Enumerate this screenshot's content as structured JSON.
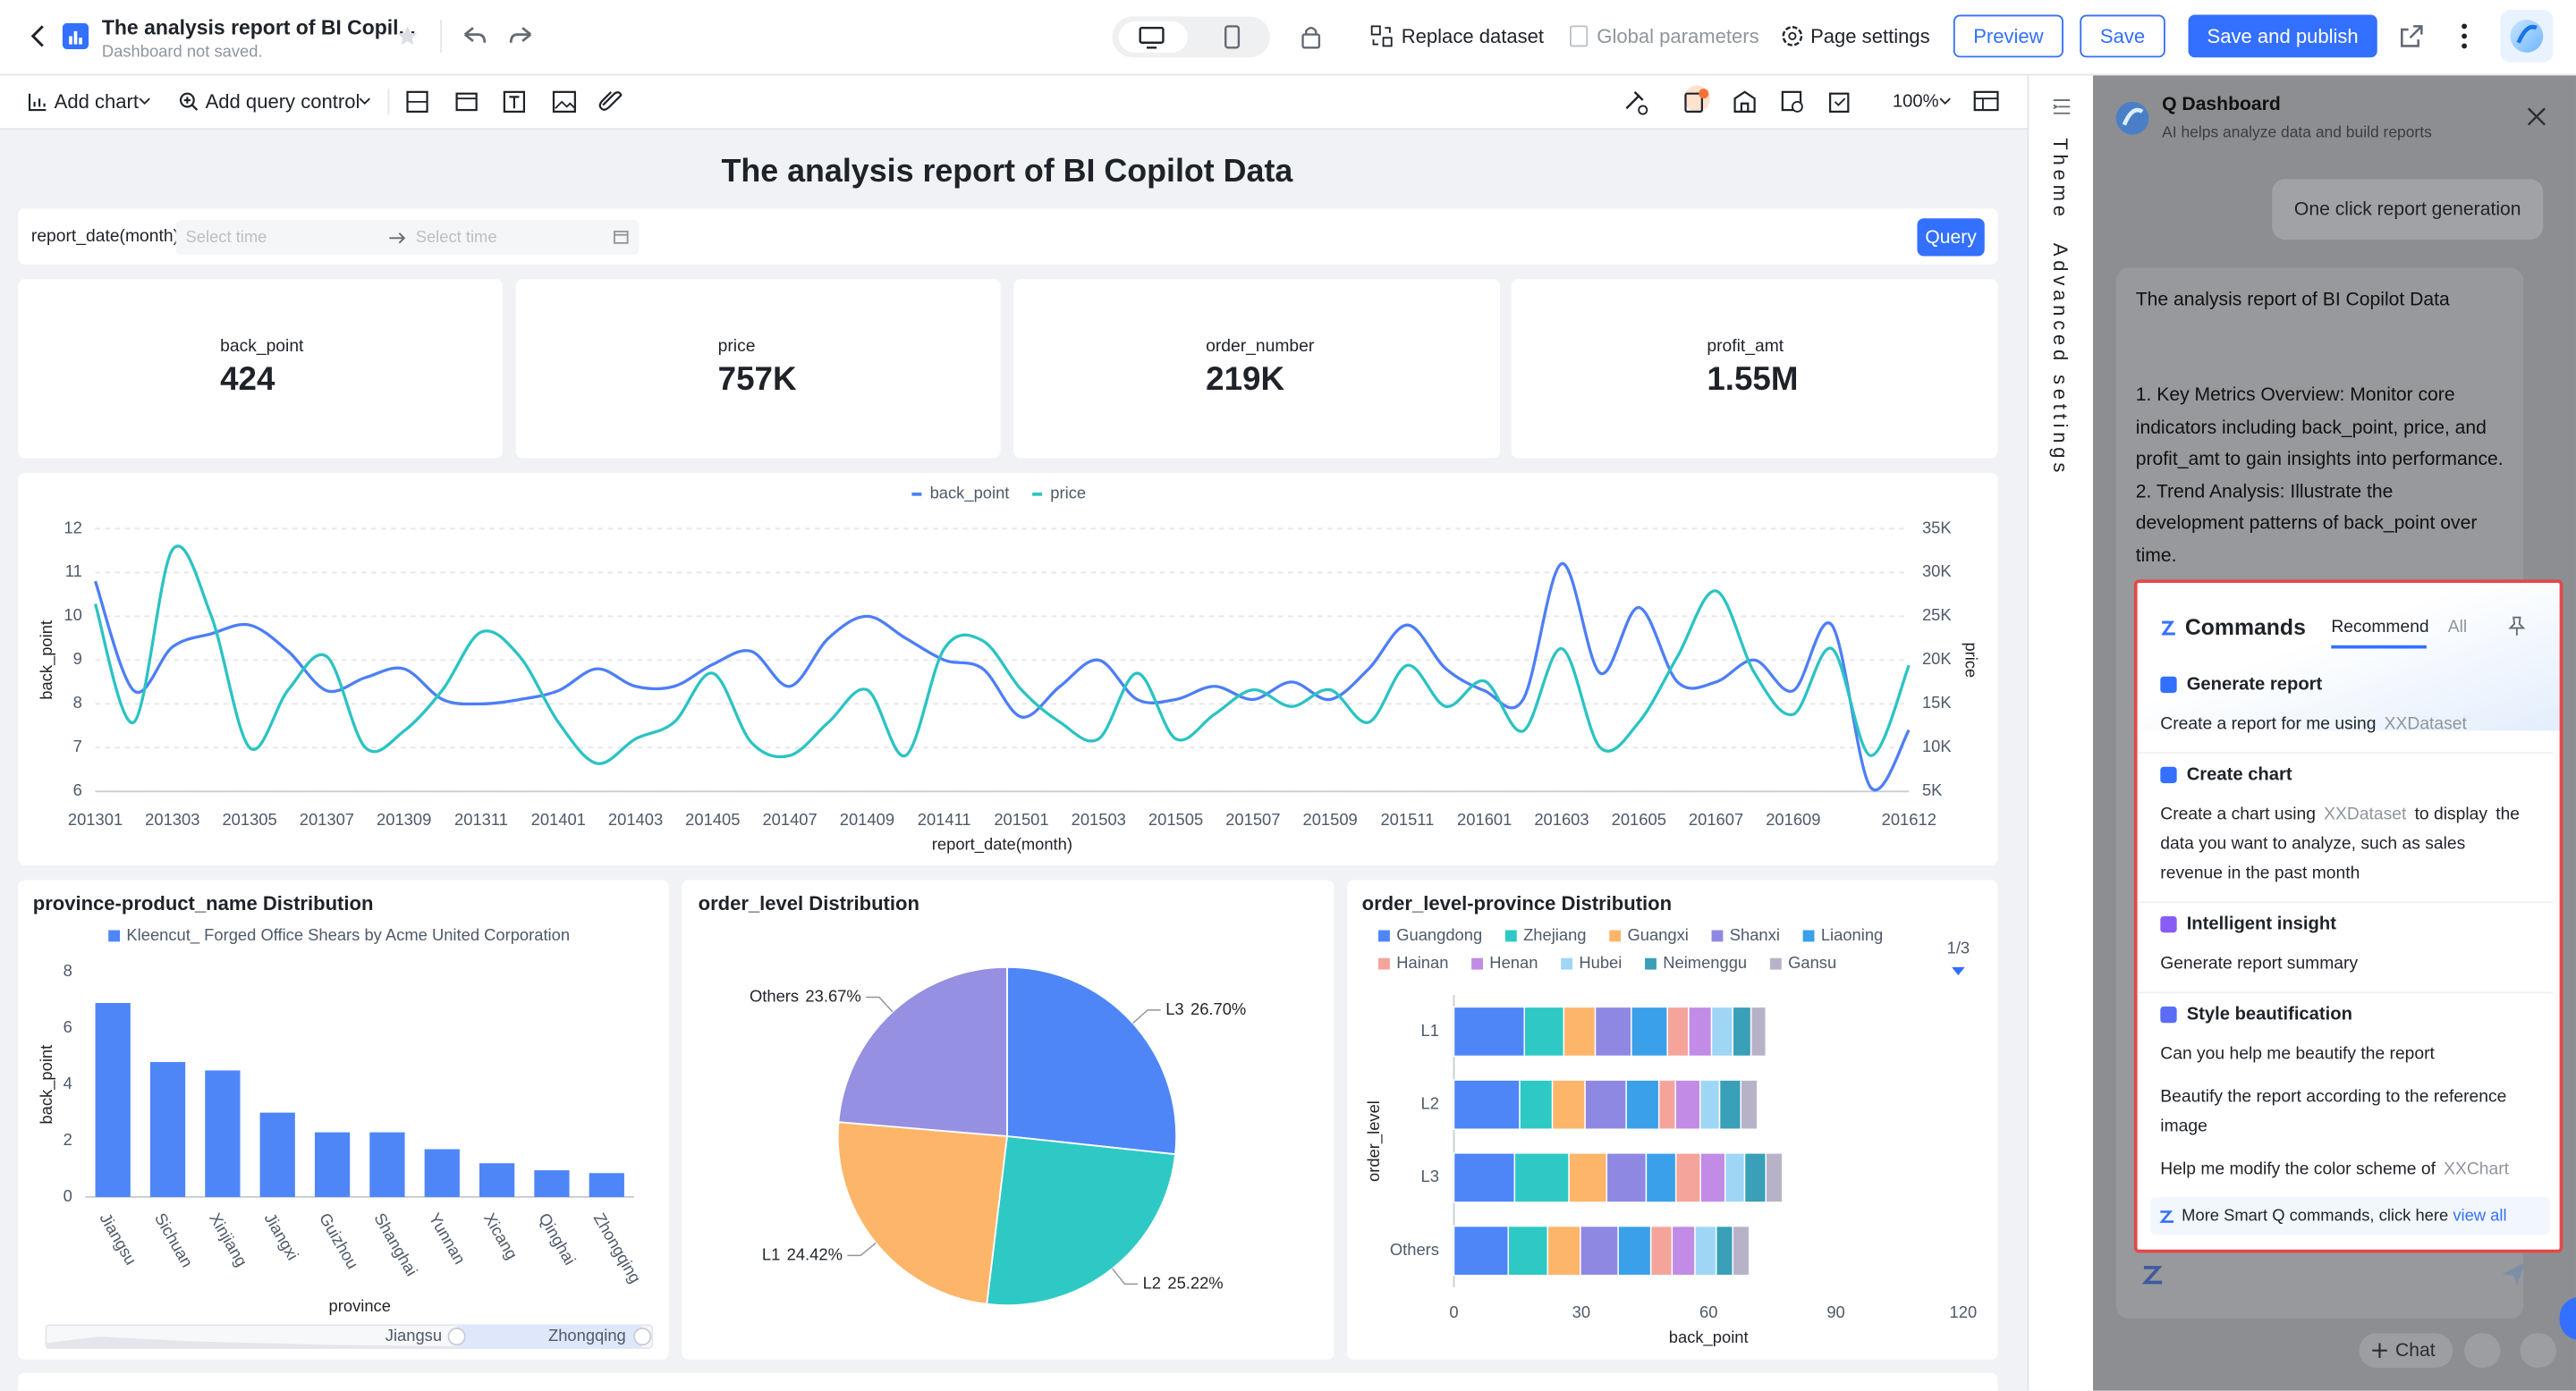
{
  "header": {
    "title": "The analysis report of BI Copil...",
    "status": "Dashboard not saved.",
    "replace_dataset": "Replace dataset",
    "global_parameters": "Global parameters",
    "page_settings": "Page settings",
    "preview": "Preview",
    "save": "Save",
    "publish": "Save and publish"
  },
  "toolbar": {
    "add_chart": "Add chart",
    "add_query_control": "Add query control",
    "zoom": "100%"
  },
  "side_tabs": [
    "Theme",
    "Advanced settings"
  ],
  "dashboard": {
    "title": "The analysis report of BI Copilot Data",
    "filter": {
      "label": "report_date(month)",
      "start": "Select time",
      "end": "Select time",
      "button": "Query"
    },
    "kpis": [
      {
        "label": "back_point",
        "value": "424"
      },
      {
        "label": "price",
        "value": "757K"
      },
      {
        "label": "order_number",
        "value": "219K"
      },
      {
        "label": "profit_amt",
        "value": "1.55M"
      }
    ]
  },
  "chart_data": [
    {
      "type": "line",
      "xlabel": "report_date(month)",
      "ylabel": "back_point",
      "y2label": "price",
      "categories": [
        "201301",
        null,
        "201303",
        null,
        "201305",
        null,
        "201307",
        null,
        "201309",
        null,
        "201311",
        null,
        "201401",
        null,
        "201403",
        null,
        "201405",
        null,
        "201407",
        null,
        "201409",
        null,
        "201411",
        null,
        "201501",
        null,
        "201503",
        null,
        "201505",
        null,
        "201507",
        null,
        "201509",
        null,
        "201511",
        null,
        "201601",
        null,
        "201603",
        null,
        "201605",
        null,
        "201607",
        null,
        "201609",
        null,
        null,
        "201612"
      ],
      "ylim": [
        6,
        12
      ],
      "yticks": [
        6,
        7,
        8,
        9,
        10,
        11,
        12
      ],
      "y2lim": [
        5000,
        35000
      ],
      "y2ticks": [
        {
          "value": 5000,
          "label": "5K"
        },
        {
          "value": 10000,
          "label": "10K"
        },
        {
          "value": 15000,
          "label": "15K"
        },
        {
          "value": 20000,
          "label": "20K"
        },
        {
          "value": 25000,
          "label": "25K"
        },
        {
          "value": 30000,
          "label": "30K"
        },
        {
          "value": 35000,
          "label": "35K"
        }
      ],
      "grid": true,
      "series": [
        {
          "name": "back_point",
          "color": "#4d7ef7",
          "values": [
            10.8,
            8.3,
            9.3,
            9.6,
            9.8,
            9.2,
            8.3,
            8.6,
            8.8,
            8.1,
            8.0,
            8.1,
            8.3,
            8.8,
            8.4,
            8.4,
            8.9,
            9.2,
            8.4,
            9.5,
            10.0,
            9.5,
            9.0,
            8.8,
            7.7,
            8.4,
            9.0,
            8.1,
            8.1,
            8.4,
            8.1,
            8.5,
            8.1,
            8.8,
            9.8,
            8.8,
            8.3,
            8.1,
            11.2,
            8.7,
            10.2,
            8.5,
            8.5,
            9.0,
            8.3,
            9.8,
            6.1,
            7.4
          ]
        },
        {
          "name": "price",
          "color": "#2bc3c3",
          "axis": "y2",
          "values": [
            26400,
            12900,
            32600,
            25100,
            10000,
            16600,
            20400,
            10000,
            11900,
            16600,
            23200,
            20400,
            12900,
            8200,
            11000,
            12900,
            18500,
            10600,
            9100,
            12900,
            16600,
            9100,
            21300,
            22200,
            16600,
            12900,
            11000,
            18500,
            11000,
            13800,
            16600,
            14700,
            16600,
            12900,
            19400,
            14700,
            17600,
            11900,
            21300,
            10000,
            12900,
            20400,
            27900,
            18500,
            13800,
            21300,
            9100,
            19400
          ]
        }
      ]
    },
    {
      "type": "bar",
      "title": "province-product_name Distribution",
      "xlabel": "province",
      "ylabel": "back_point",
      "categories": [
        "Jiangsu",
        "Sichuan",
        "Xinjiang",
        "Jiangxi",
        "Guizhou",
        "Shanghai",
        "Yunnan",
        "Xicang",
        "Qinghai",
        "Zhongqing"
      ],
      "series": [
        {
          "name": "Kleencut_ Forged Office Shears by Acme United Corporation",
          "color": "#4e86f7",
          "values": [
            6.9,
            4.8,
            4.5,
            3.0,
            2.3,
            2.3,
            1.7,
            1.2,
            0.95,
            0.85
          ]
        }
      ],
      "ylim": [
        0,
        8
      ],
      "yticks": [
        0,
        2,
        4,
        6,
        8
      ],
      "grid": false,
      "slider": {
        "start": "Jiangsu",
        "end": "Zhongqing"
      }
    },
    {
      "type": "pie",
      "title": "order_level Distribution",
      "categories": [
        "L3",
        "L2",
        "L1",
        "Others"
      ],
      "values": [
        26.7,
        25.22,
        24.42,
        23.67
      ],
      "value_labels": [
        "26.70%",
        "25.22%",
        "24.42%",
        "23.67%"
      ],
      "colors": [
        "#4e86f7",
        "#2ec9c4",
        "#fdb56a",
        "#9590e2"
      ]
    },
    {
      "type": "bar",
      "orientation": "horizontal",
      "stacked": true,
      "title": "order_level-province Distribution",
      "xlabel": "back_point",
      "ylabel": "order_level",
      "categories": [
        "L1",
        "L2",
        "L3",
        "Others"
      ],
      "legend_page": "1/3",
      "xlim": [
        0,
        120
      ],
      "xticks": [
        0,
        30,
        60,
        90,
        120
      ],
      "grid": false,
      "series": [
        {
          "name": "Guangdong",
          "color": "#4e86f7",
          "values": [
            16.6,
            15.5,
            14.3,
            12.8
          ]
        },
        {
          "name": "Zhejiang",
          "color": "#2ec9c4",
          "values": [
            9.3,
            7.7,
            12.8,
            9.3
          ]
        },
        {
          "name": "Guangxi",
          "color": "#fdb56a",
          "values": [
            7.4,
            7.7,
            8.9,
            7.7
          ]
        },
        {
          "name": "Shanxi",
          "color": "#8f88e3",
          "values": [
            8.5,
            9.7,
            9.3,
            8.9
          ]
        },
        {
          "name": "Liaoning",
          "color": "#3aa0ea",
          "values": [
            8.5,
            7.7,
            7.0,
            7.7
          ]
        },
        {
          "name": "Hainan",
          "color": "#f5a49c",
          "values": [
            5.0,
            3.9,
            5.8,
            5.0
          ]
        },
        {
          "name": "Henan",
          "color": "#c18be6",
          "values": [
            5.4,
            5.8,
            5.8,
            5.4
          ]
        },
        {
          "name": "Hubei",
          "color": "#9fd6f6",
          "values": [
            5.0,
            4.6,
            4.6,
            5.0
          ]
        },
        {
          "name": "Neimenggu",
          "color": "#3a9fb8",
          "values": [
            4.3,
            5.0,
            5.0,
            3.9
          ]
        },
        {
          "name": "Gansu",
          "color": "#b8b2c9",
          "values": [
            3.5,
            3.9,
            3.9,
            3.9
          ]
        }
      ]
    }
  ],
  "assistant": {
    "title": "Q Dashboard",
    "subtitle": "AI helps analyze data and build reports",
    "quick_action": "One click report generation",
    "message": {
      "title": "The analysis report of BI Copilot Data",
      "body": "1. Key Metrics Overview: Monitor core indicators including back_point, price, and profit_amt to gain insights into performance.\n2. Trend Analysis: Illustrate the development patterns of back_point over time."
    },
    "commands": {
      "title": "Commands",
      "tabs": [
        "Recommend",
        "All"
      ],
      "items": [
        {
          "title": "Generate report",
          "icon_color": "#3370ff",
          "prompts": [
            {
              "parts": [
                {
                  "text": "Create a report for me using"
                },
                {
                  "text": "XXDataset",
                  "muted": true
                }
              ]
            }
          ]
        },
        {
          "title": "Create chart",
          "icon_color": "#3370ff",
          "prompts": [
            {
              "parts": [
                {
                  "text": "Create a chart using"
                },
                {
                  "text": "XXDataset",
                  "muted": true
                },
                {
                  "text": "to display"
                },
                {
                  "text": "the data you want to analyze, such as sales revenue in the past month"
                }
              ]
            }
          ]
        },
        {
          "title": "Intelligent insight",
          "icon_color": "#8a5cf6",
          "prompts": [
            {
              "parts": [
                {
                  "text": "Generate report summary"
                }
              ]
            }
          ]
        },
        {
          "title": "Style beautification",
          "icon_color": "#5b6cf6",
          "prompts": [
            {
              "parts": [
                {
                  "text": "Can you help me beautify the report"
                }
              ]
            },
            {
              "parts": [
                {
                  "text": "Beautify the report according to the reference image"
                }
              ]
            },
            {
              "parts": [
                {
                  "text": "Help me modify the color scheme of"
                },
                {
                  "text": "XXChart",
                  "muted": true
                }
              ]
            }
          ]
        }
      ],
      "footer": "More Smart Q commands, click here",
      "footer_link": "view all"
    },
    "chat_button": "Chat"
  }
}
